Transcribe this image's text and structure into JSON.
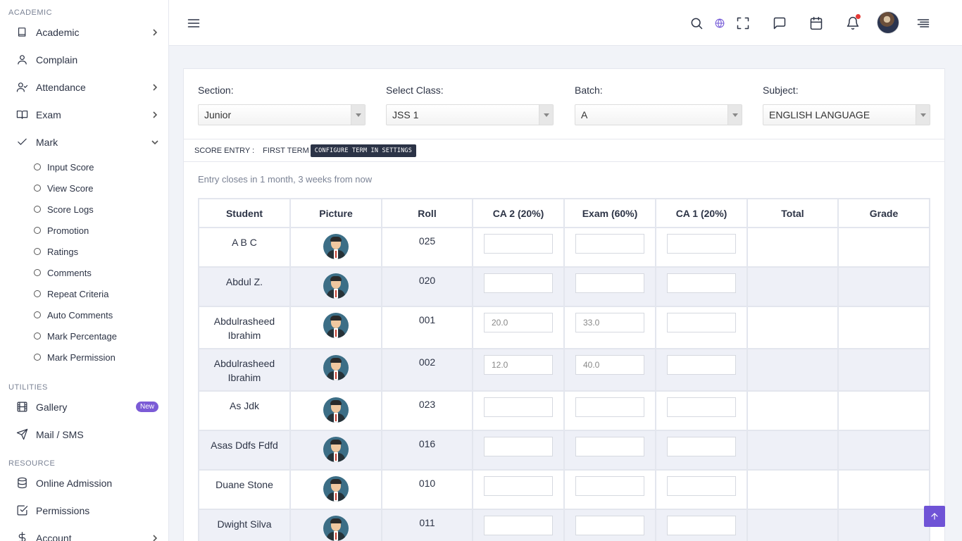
{
  "sidebar": {
    "academic_label": "ACADEMIC",
    "utilities_label": "UTILITIES",
    "resource_label": "RESOURCE",
    "items": {
      "academic": "Academic",
      "complain": "Complain",
      "attendance": "Attendance",
      "exam": "Exam",
      "mark": "Mark",
      "gallery": "Gallery",
      "gallery_badge": "New",
      "mail": "Mail / SMS",
      "admission": "Online Admission",
      "permissions": "Permissions",
      "account": "Account"
    },
    "mark_sub": [
      "Input Score",
      "View Score",
      "Score Logs",
      "Promotion",
      "Ratings",
      "Comments",
      "Repeat Criteria",
      "Auto Comments",
      "Mark Percentage",
      "Mark Permission"
    ]
  },
  "filters": {
    "section": {
      "label": "Section:",
      "value": "Junior"
    },
    "class": {
      "label": "Select Class:",
      "value": "JSS 1"
    },
    "batch": {
      "label": "Batch:",
      "value": "A"
    },
    "subject": {
      "label": "Subject:",
      "value": "ENGLISH LANGUAGE"
    }
  },
  "score": {
    "label": "SCORE ENTRY :",
    "term": "FIRST TERM",
    "config_button": "CONFIGURE TERM IN SETTINGS",
    "closes": "Entry closes in 1 month, 3 weeks from now"
  },
  "table": {
    "headers": [
      "Student",
      "Picture",
      "Roll",
      "CA 2 (20%)",
      "Exam (60%)",
      "CA 1 (20%)",
      "Total",
      "Grade"
    ],
    "rows": [
      {
        "name": "A B C",
        "roll": "025",
        "ca2": "",
        "exam": "",
        "ca1": ""
      },
      {
        "name": "Abdul Z.",
        "roll": "020",
        "ca2": "",
        "exam": "",
        "ca1": ""
      },
      {
        "name": "Abdulrasheed Ibrahim",
        "roll": "001",
        "ca2": "20.0",
        "exam": "33.0",
        "ca1": ""
      },
      {
        "name": "Abdulrasheed Ibrahim",
        "roll": "002",
        "ca2": "12.0",
        "exam": "40.0",
        "ca1": ""
      },
      {
        "name": "As Jdk",
        "roll": "023",
        "ca2": "",
        "exam": "",
        "ca1": ""
      },
      {
        "name": "Asas Ddfs Fdfd",
        "roll": "016",
        "ca2": "",
        "exam": "",
        "ca1": ""
      },
      {
        "name": "Duane Stone",
        "roll": "010",
        "ca2": "",
        "exam": "",
        "ca1": ""
      },
      {
        "name": "Dwight Silva",
        "roll": "011",
        "ca2": "",
        "exam": "",
        "ca1": ""
      }
    ]
  },
  "icons": {
    "menu": "hamburger-icon",
    "search": "search-icon",
    "language": "globe-icon",
    "fullscreen": "fullscreen-icon",
    "chat": "chat-icon",
    "calendar": "calendar-icon",
    "notifications": "bell-icon",
    "settings": "menu-lines-icon",
    "to_top": "arrow-up-icon"
  }
}
